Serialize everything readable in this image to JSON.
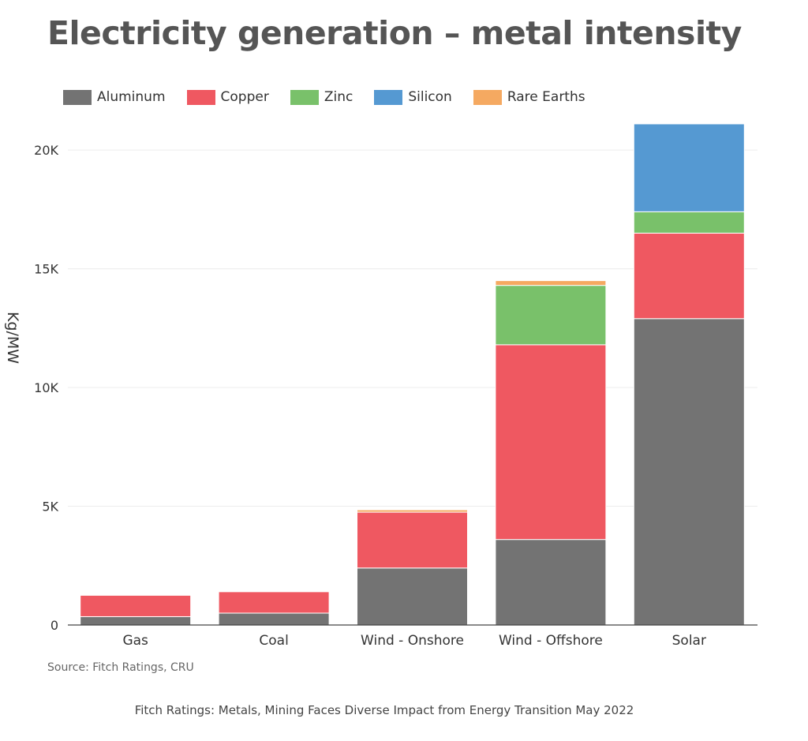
{
  "title": "Electricity generation – metal intensity",
  "source": "Source: Fitch Ratings, CRU",
  "footer": "Fitch Ratings: Metals, Mining Faces Diverse Impact from Energy Transition May 2022",
  "chart_data": {
    "type": "bar",
    "stacked": true,
    "title": "Electricity generation – metal intensity",
    "xlabel": "",
    "ylabel": "Kg/MW",
    "categories": [
      "Gas",
      "Coal",
      "Wind - Onshore",
      "Wind - Offshore",
      "Solar"
    ],
    "series": [
      {
        "name": "Aluminum",
        "color": "#737373",
        "values": [
          350,
          500,
          2400,
          3600,
          12900
        ]
      },
      {
        "name": "Copper",
        "color": "#ef5861",
        "values": [
          900,
          900,
          2350,
          8200,
          3600
        ]
      },
      {
        "name": "Zinc",
        "color": "#79c16a",
        "values": [
          0,
          0,
          0,
          2500,
          900
        ]
      },
      {
        "name": "Silicon",
        "color": "#5599d2",
        "values": [
          0,
          0,
          0,
          0,
          3700
        ]
      },
      {
        "name": "Rare Earths",
        "color": "#f5a961",
        "values": [
          0,
          0,
          100,
          200,
          0
        ]
      }
    ],
    "ylim": [
      0,
      21000
    ],
    "yticks": [
      0,
      5000,
      10000,
      15000,
      20000
    ],
    "ytick_labels": [
      "0",
      "5K",
      "10K",
      "15K",
      "20K"
    ],
    "grid": true,
    "legend_position": "top-left"
  }
}
